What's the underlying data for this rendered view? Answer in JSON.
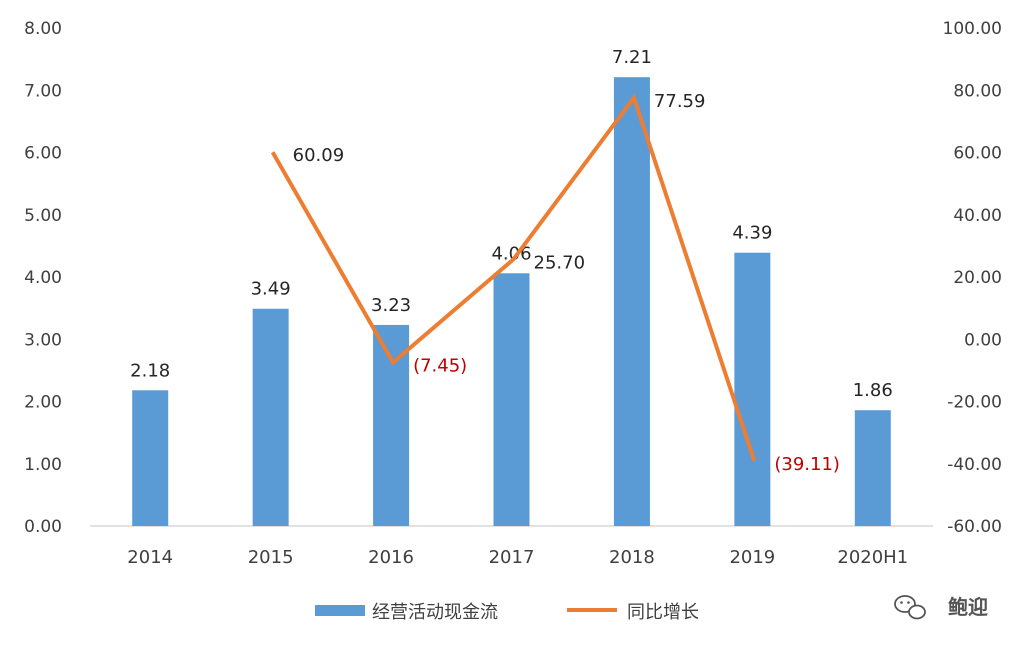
{
  "chart_data": {
    "type": "bar",
    "categories": [
      "2014",
      "2015",
      "2016",
      "2017",
      "2018",
      "2019",
      "2020H1"
    ],
    "series": [
      {
        "name": "经营活动现金流",
        "type": "bar",
        "axis": "left",
        "color": "#5b9bd5",
        "values": [
          2.18,
          3.49,
          3.23,
          4.06,
          7.21,
          4.39,
          1.86
        ],
        "labels": [
          "2.18",
          "3.49",
          "3.23",
          "4.06",
          "7.21",
          "4.39",
          "1.86"
        ]
      },
      {
        "name": "同比增长",
        "type": "line",
        "axis": "right",
        "color": "#ed7d31",
        "values": [
          null,
          60.09,
          -7.45,
          25.7,
          77.59,
          -39.11,
          null
        ],
        "labels": [
          "",
          "60.09",
          "(7.45)",
          "25.70",
          "77.59",
          "(39.11)",
          ""
        ]
      }
    ],
    "left_axis": {
      "ylim": [
        0,
        8
      ],
      "ticks": [
        "0.00",
        "1.00",
        "2.00",
        "3.00",
        "4.00",
        "5.00",
        "6.00",
        "7.00",
        "8.00"
      ]
    },
    "right_axis": {
      "ylim": [
        -60,
        100
      ],
      "ticks": [
        "-60.00",
        "-40.00",
        "-20.00",
        "0.00",
        "20.00",
        "40.00",
        "60.00",
        "80.00",
        "100.00"
      ]
    },
    "negative_label_color": "#c00000",
    "grid": false,
    "legend_position": "bottom"
  },
  "watermark": {
    "text": "鲍迎"
  }
}
